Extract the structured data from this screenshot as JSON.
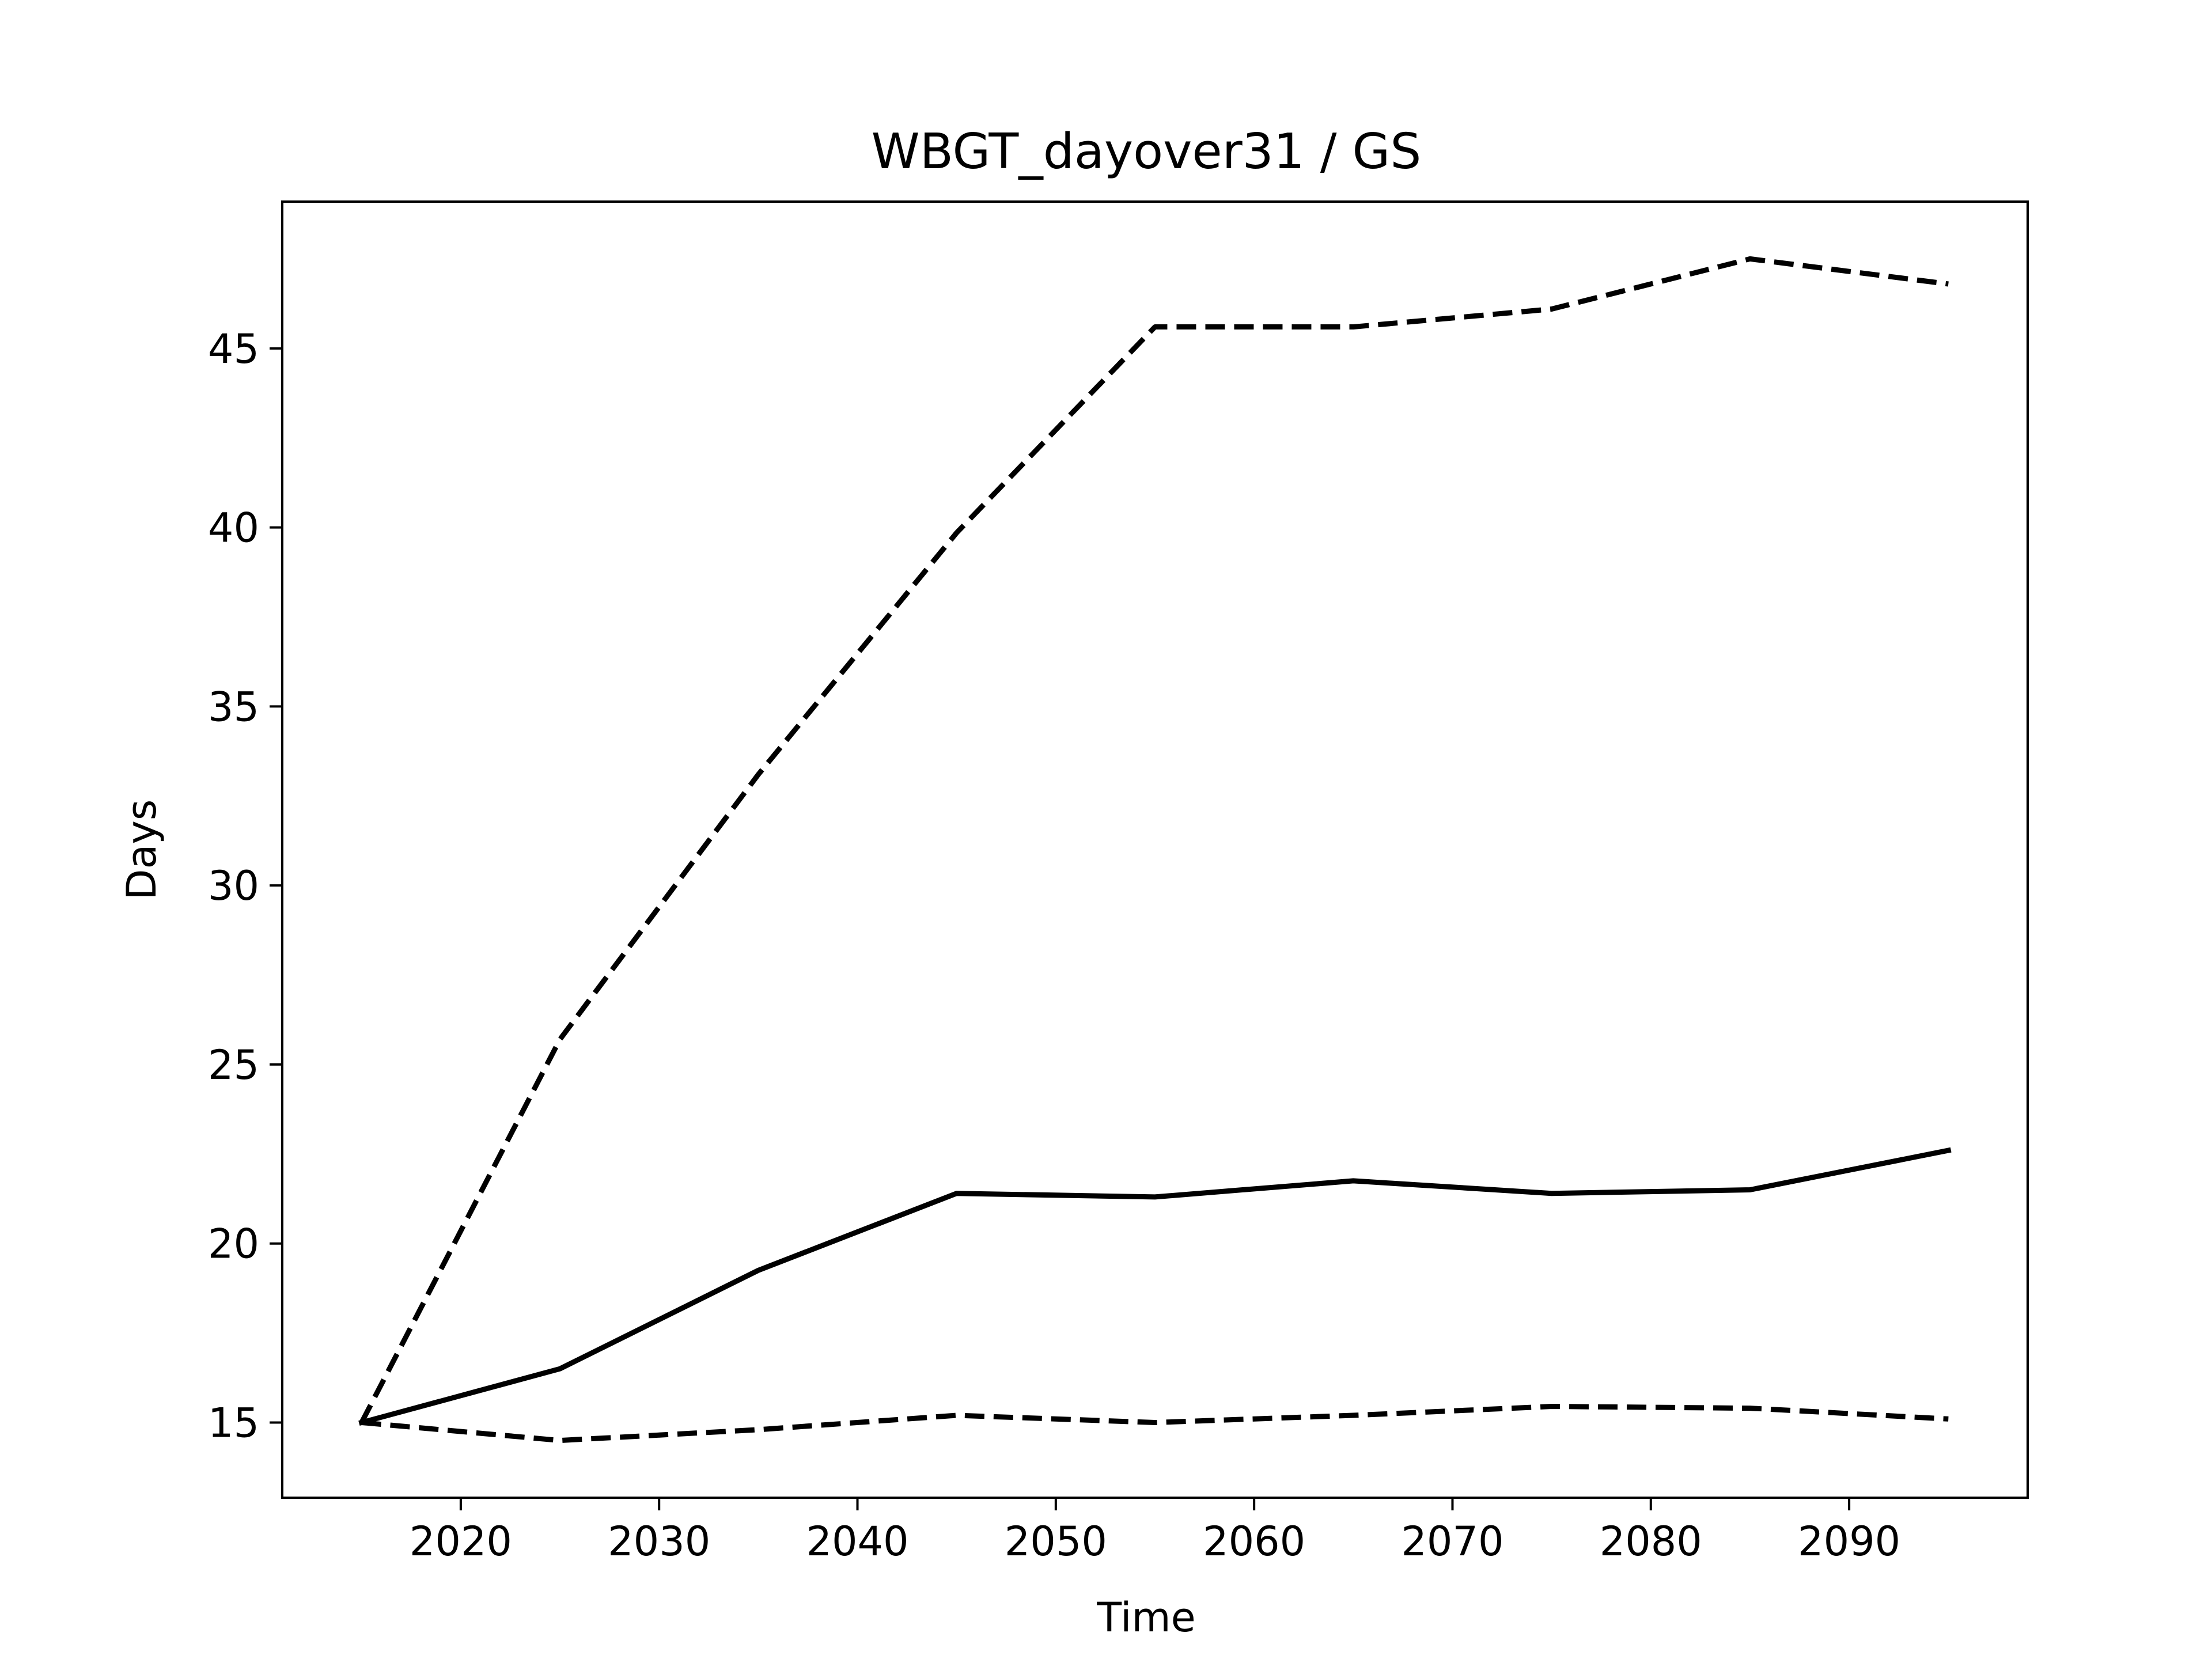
{
  "chart_data": {
    "type": "line",
    "title": "WBGT_dayover31 / GS",
    "xlabel": "Time",
    "ylabel": "Days",
    "xlim": [
      2011,
      2099
    ],
    "ylim": [
      12.9,
      49.1
    ],
    "x_ticks": [
      2020,
      2030,
      2040,
      2050,
      2060,
      2070,
      2080,
      2090
    ],
    "y_ticks": [
      15,
      20,
      25,
      30,
      35,
      40,
      45
    ],
    "grid": false,
    "legend": "none",
    "x": [
      2015,
      2025,
      2035,
      2045,
      2055,
      2065,
      2075,
      2085,
      2095
    ],
    "series": [
      {
        "style": "solid",
        "color": "#000000",
        "values": [
          15.0,
          16.5,
          19.25,
          21.4,
          21.3,
          21.75,
          21.4,
          21.5,
          22.6
        ]
      },
      {
        "style": "dashed",
        "color": "#000000",
        "values": [
          15.0,
          25.7,
          33.1,
          39.85,
          45.6,
          45.6,
          46.1,
          47.5,
          46.8
        ]
      },
      {
        "style": "dashed",
        "color": "#000000",
        "values": [
          15.0,
          14.5,
          14.8,
          15.2,
          15.0,
          15.2,
          15.45,
          15.4,
          15.1
        ]
      }
    ]
  }
}
